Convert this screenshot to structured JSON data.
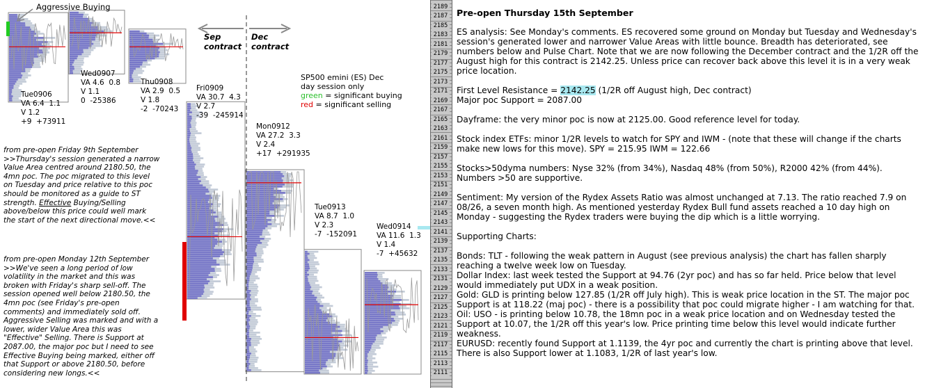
{
  "chart_data": {
    "type": "market-profile",
    "title": "",
    "price_axis": {
      "min": 2111,
      "max": 2189,
      "step": 2
    },
    "callout": "Aggressive Buying",
    "contract_labels": {
      "sep": "Sep\ncontract",
      "dec": "Dec\ncontract"
    },
    "legend": {
      "line1": "SP500 emini  (ES)  Dec",
      "line2": "day session only",
      "green_word": "green",
      "green_rest": " = significant buying",
      "red_word": "red",
      "red_rest": " = significant selling"
    },
    "sessions": [
      {
        "name": "Tue0906",
        "va": "VA 6.4  1.1",
        "v": "V 1.2",
        "delta": "+9  +73911",
        "high": 2187.5,
        "low": 2169,
        "poc": 2180.5
      },
      {
        "name": "Wed0907",
        "va": "VA 4.6  0.8",
        "v": "V 1.1",
        "delta": "0  -25386",
        "high": 2188,
        "low": 2175,
        "poc": 2183.5
      },
      {
        "name": "Thu0908",
        "va": "VA 2.9  0.5",
        "v": "V 1.8",
        "delta": "-2  -70243",
        "high": 2184,
        "low": 2173,
        "poc": 2180.5
      },
      {
        "name": "Fri0909",
        "va": "VA 30.7  4.3",
        "v": "V 2.7",
        "delta": "-39  -245914",
        "high": 2168.5,
        "low": 2127,
        "poc": 2140
      },
      {
        "name": "Mon0912",
        "va": "VA 27.2  3.3",
        "v": "V 2.4",
        "delta": "+17  +291935",
        "high": 2154,
        "low": 2111.5,
        "poc": 2151.5
      },
      {
        "name": "Tue0913",
        "va": "VA 8.7  1.0",
        "v": "V 2.3",
        "delta": "-7  -152091",
        "high": 2137,
        "low": 2111,
        "poc": 2118.5
      },
      {
        "name": "Wed0914",
        "va": "VA 11.6  1.3",
        "v": "V 1.4",
        "delta": "-7  +45632",
        "high": 2132.5,
        "low": 2111,
        "poc": 2125.5
      }
    ],
    "notes": [
      {
        "p1": "from pre-open Friday 9th September >>Thursday's session generated a narrow Value Area centred around 2180.50, the 4mn poc.  The poc migrated to this level on Tuesday and price relative to this poc should be monitored as a guide to ST strength.  ",
        "u": "Effective",
        "p2": " Buying/Selling above/below this price could well mark the start of the next directional move.<<"
      },
      {
        "p1": "from pre-open Monday 12th September >>We've seen a long period of low volatility in the market and this was broken with Friday's sharp sell-off.  The session opened well below 2180.50, the 4mn poc (see Friday's pre-open comments) and immediately sold off.  Aggressive Selling was marked and with a lower, wider Value Area this was \"Effective\" Selling.  There is Support at 2087.00, the major poc but I need to see Effective Buying being marked, either off that Support or above 2180.50, before considering new longs.<<",
        "u": "",
        "p2": ""
      }
    ],
    "colors": {
      "profile": "#7878c8",
      "poc": "#e00000",
      "buying": "#22cc22",
      "selling": "#e00000",
      "axis": "#c8c8c8",
      "highlight": "#a8e8f0"
    }
  },
  "analysis": {
    "title": "Pre-open Thursday 15th September",
    "es": "ES analysis: See Monday's comments.  ES recovered some ground on Monday but Tuesday and Wednesday's session's generated lower and narrower Value Areas with little bounce. Breadth has deteriorated, see numbers below and Pulse Chart. Note that we are now following the December contract and the 1/2R off the August high for this contract is 2142.25.  Unless price can recover back above this level it is in a very weak price location.",
    "resistance_pre": "First Level Resistance = ",
    "resistance_value": "2142.25",
    "resistance_post": " (1/2R off August high, Dec contract)",
    "support": "Major poc Support = 2087.00",
    "dayframe": "Dayframe: the very minor poc is now at 2125.00. Good reference level for today.",
    "etfs": "Stock index ETFs: minor 1/2R levels to watch for SPY and IWM - (note that these will change if the charts make new lows for this move).    SPY = 215.95  IWM = 122.66",
    "stocks": "Stocks>50dyma numbers: Nyse 32% (from 34%), Nasdaq 48% (from 50%), R2000 42% (from 44%). Numbers >50 are supportive.",
    "sentiment": "Sentiment: My version of the Rydex Assets Ratio was almost unchanged at 7.13. The ratio reached 7.9 on 08/26, a seven month high.  As mentioned yesterday Rydex Bull fund assets reached a 10 day high on Monday - suggesting the Rydex traders were buying the dip which is a little worrying.",
    "supporting": "Supporting Charts:",
    "bonds": "Bonds: TLT - following the weak pattern in August (see previous analysis) the chart has fallen sharply reaching a twelve week low on Tuesday.",
    "dollar": "Dollar Index: last week tested the Support at 94.76 (2yr poc) and has so far held. Price below that level would immediately put UDX in a weak position.",
    "gold": "Gold: GLD is printing below 127.85 (1/2R off July high).  This is weak price location in the ST. The major poc Support is at 118.22 (maj poc) - there is a possibility that poc could migrate higher - I am watching for that.",
    "oil": "Oil: USO - is printing below 10.78, the 18mn poc in a weak price location and on Wednesday tested the Support at 10.07, the 1/2R off this year's low. Price printing time below this level would indicate further weakness.",
    "eurusd": "EURUSD: recently found Support at 1.1139, the 4yr poc and currently the chart is printing above that level.  There is also Support lower at 1.1083, 1/2R of  last year's low."
  }
}
